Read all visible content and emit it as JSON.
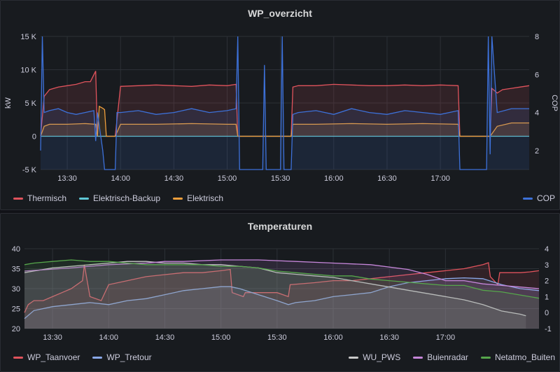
{
  "panels": [
    {
      "title": "WP_overzicht",
      "left_axis_label": "kW",
      "right_axis_label": "COP",
      "y_ticks": [
        "15 K",
        "10 K",
        "5 K",
        "0",
        "-5 K"
      ],
      "y2_ticks": [
        "8",
        "6",
        "4",
        "2"
      ],
      "x_ticks": [
        "13:30",
        "14:00",
        "14:30",
        "15:00",
        "15:30",
        "16:00",
        "16:30",
        "17:00"
      ],
      "legend_left": [
        {
          "name": "Thermisch",
          "color": "#e0535c"
        },
        {
          "name": "Elektrisch-Backup",
          "color": "#5ec8d6"
        },
        {
          "name": "Elektrisch",
          "color": "#ef9f3c"
        }
      ],
      "legend_right": [
        {
          "name": "COP",
          "color": "#3d71d9"
        }
      ]
    },
    {
      "title": "Temperaturen",
      "y_ticks": [
        "40",
        "35",
        "30",
        "25",
        "20"
      ],
      "y2_ticks": [
        "4",
        "3",
        "2",
        "1",
        "0",
        "-1"
      ],
      "x_ticks": [
        "13:30",
        "14:00",
        "14:30",
        "15:00",
        "15:30",
        "16:00",
        "16:30",
        "17:00"
      ],
      "legend_left": [
        {
          "name": "WP_Taanvoer",
          "color": "#e0535c"
        },
        {
          "name": "WP_Tretour",
          "color": "#8aa8e8"
        }
      ],
      "legend_right": [
        {
          "name": "WU_PWS",
          "color": "#c9c9c9"
        },
        {
          "name": "Buienradar",
          "color": "#c586d9"
        },
        {
          "name": "Netatmo_Buiten",
          "color": "#56a64b"
        }
      ]
    }
  ],
  "chart_data": [
    {
      "type": "area",
      "title": "WP_overzicht",
      "ylabel": "kW",
      "y2label": "COP",
      "ylim": [
        -5000,
        15000
      ],
      "y2lim": [
        1,
        8
      ],
      "xlim_min": [
        795,
        1070
      ],
      "series": [
        {
          "name": "Thermisch",
          "axis": "left",
          "x": [
            795,
            797,
            800,
            805,
            810,
            815,
            820,
            823,
            826,
            827,
            830,
            831,
            837,
            840,
            850,
            860,
            870,
            880,
            890,
            900,
            905,
            906,
            910,
            911,
            936,
            937,
            940,
            950,
            960,
            970,
            980,
            990,
            1000,
            1010,
            1020,
            1030,
            1031,
            1048,
            1049,
            1052,
            1055,
            1060,
            1065,
            1070
          ],
          "values": [
            0,
            6000,
            7000,
            7400,
            7600,
            7800,
            8200,
            8200,
            9800,
            0,
            0,
            0,
            0,
            7500,
            7600,
            7700,
            7600,
            7500,
            7700,
            7600,
            7800,
            0,
            0,
            0,
            0,
            7400,
            7600,
            7600,
            7800,
            7700,
            7600,
            7600,
            7700,
            7600,
            7700,
            7600,
            0,
            0,
            7200,
            6500,
            7000,
            7200,
            7400,
            7600
          ]
        },
        {
          "name": "Elektrisch-Backup",
          "axis": "left",
          "x": [
            795,
            1070
          ],
          "values": [
            0,
            0
          ]
        },
        {
          "name": "Elektrisch",
          "axis": "left",
          "x": [
            795,
            797,
            800,
            810,
            820,
            826,
            827,
            828,
            830,
            831,
            832,
            837,
            840,
            860,
            880,
            900,
            905,
            906,
            910,
            911,
            936,
            937,
            950,
            970,
            990,
            1010,
            1030,
            1031,
            1048,
            1052,
            1060,
            1070
          ],
          "values": [
            0,
            1500,
            1800,
            1800,
            1900,
            1800,
            0,
            4500,
            4200,
            4000,
            0,
            0,
            1800,
            1800,
            1900,
            1800,
            1800,
            0,
            0,
            0,
            0,
            1800,
            1800,
            1900,
            1800,
            1900,
            1800,
            0,
            0,
            1500,
            2000,
            2000
          ]
        },
        {
          "name": "COP",
          "axis": "right",
          "x": [
            795,
            796,
            797,
            800,
            805,
            810,
            815,
            820,
            825,
            826,
            827,
            830,
            831,
            837,
            838,
            840,
            850,
            860,
            870,
            880,
            890,
            900,
            905,
            906,
            907,
            920,
            921,
            922,
            930,
            931,
            932,
            936,
            937,
            940,
            950,
            960,
            970,
            980,
            990,
            1000,
            1010,
            1020,
            1030,
            1031,
            1046,
            1047,
            1048,
            1049,
            1052,
            1060,
            1070
          ],
          "values": [
            2,
            8,
            4.0,
            4.1,
            4.2,
            4.0,
            3.9,
            4.0,
            4.1,
            2.5,
            4.0,
            2.0,
            1.0,
            1.0,
            4.0,
            4.0,
            4.1,
            3.9,
            4.0,
            4.2,
            4.0,
            4.1,
            4.2,
            8,
            1,
            1,
            6.5,
            1,
            1,
            8,
            1,
            1,
            3.9,
            4.0,
            4.1,
            3.9,
            4.2,
            4.0,
            3.9,
            4.1,
            4.0,
            3.9,
            4.1,
            1,
            1,
            8,
            1.8,
            8,
            4.0,
            4.2,
            4.2
          ]
        }
      ]
    },
    {
      "type": "line",
      "title": "Temperaturen",
      "ylim": [
        20,
        40
      ],
      "y2lim": [
        -1,
        4
      ],
      "xlim_min": [
        795,
        1070
      ],
      "series": [
        {
          "name": "WP_Taanvoer",
          "axis": "left",
          "x": [
            795,
            797,
            800,
            805,
            810,
            815,
            820,
            826,
            827,
            830,
            836,
            840,
            850,
            860,
            870,
            880,
            890,
            900,
            905,
            906,
            912,
            913,
            930,
            936,
            937,
            950,
            960,
            970,
            980,
            990,
            1000,
            1010,
            1020,
            1030,
            1040,
            1043,
            1044,
            1048,
            1049,
            1055,
            1060,
            1065,
            1070
          ],
          "values": [
            24,
            26,
            27,
            27,
            28,
            29,
            30,
            32,
            36,
            28,
            27,
            31,
            32,
            33,
            33.5,
            34,
            34,
            34.5,
            34.8,
            29,
            28,
            29,
            29,
            28,
            31,
            31.5,
            32,
            32,
            32.5,
            33,
            33.5,
            34,
            34.5,
            35,
            36,
            36.5,
            33,
            31,
            34,
            34,
            34,
            34.2,
            34.5
          ]
        },
        {
          "name": "WP_Tretour",
          "axis": "left",
          "x": [
            795,
            800,
            810,
            820,
            830,
            840,
            850,
            860,
            870,
            880,
            890,
            900,
            905,
            910,
            920,
            930,
            936,
            940,
            950,
            960,
            970,
            980,
            990,
            1000,
            1010,
            1020,
            1030,
            1040,
            1050,
            1060,
            1070
          ],
          "values": [
            22.5,
            24.5,
            25.5,
            26,
            26.5,
            26,
            27,
            27.5,
            28.5,
            29.5,
            30,
            30.5,
            30.5,
            30,
            28.5,
            27,
            26,
            26.5,
            27,
            28,
            28.5,
            29,
            30.5,
            31.5,
            32,
            32.5,
            32.7,
            32.5,
            31,
            30,
            29.5
          ]
        },
        {
          "name": "WU_PWS",
          "axis": "right",
          "x": [
            795,
            800,
            810,
            820,
            830,
            840,
            850,
            860,
            870,
            880,
            890,
            900,
            910,
            920,
            930,
            940,
            950,
            960,
            970,
            980,
            990,
            1000,
            1010,
            1020,
            1030,
            1040,
            1050,
            1060,
            1063
          ],
          "values": [
            2.5,
            2.6,
            2.8,
            2.9,
            3.0,
            3.1,
            3.2,
            3.2,
            3.1,
            3.1,
            3.0,
            3.0,
            2.9,
            2.8,
            2.5,
            2.4,
            2.3,
            2.2,
            2.0,
            1.8,
            1.6,
            1.4,
            1.2,
            1.0,
            0.8,
            0.5,
            0.1,
            -0.1,
            -0.2
          ]
        },
        {
          "name": "Buienradar",
          "axis": "right",
          "x": [
            795,
            820,
            840,
            860,
            870,
            880,
            900,
            920,
            940,
            960,
            980,
            1000,
            1010,
            1020,
            1030,
            1040,
            1050,
            1060,
            1070
          ],
          "values": [
            2.6,
            2.8,
            3.0,
            3.1,
            3.2,
            3.2,
            3.3,
            3.3,
            3.2,
            3.1,
            3.0,
            2.7,
            2.4,
            2.0,
            2.0,
            1.8,
            1.7,
            1.6,
            1.5
          ]
        },
        {
          "name": "Netatmo_Buiten",
          "axis": "right",
          "x": [
            795,
            800,
            810,
            820,
            830,
            840,
            850,
            860,
            870,
            880,
            890,
            900,
            910,
            920,
            930,
            940,
            950,
            960,
            970,
            980,
            990,
            1000,
            1010,
            1020,
            1030,
            1040,
            1050,
            1060,
            1070
          ],
          "values": [
            3.0,
            3.1,
            3.2,
            3.3,
            3.2,
            3.2,
            3.1,
            3.0,
            3.0,
            3.0,
            3.0,
            2.9,
            2.9,
            2.8,
            2.6,
            2.5,
            2.4,
            2.3,
            2.3,
            2.1,
            2.0,
            1.9,
            1.8,
            1.7,
            1.7,
            1.4,
            1.3,
            1.1,
            0.9
          ]
        }
      ]
    }
  ]
}
